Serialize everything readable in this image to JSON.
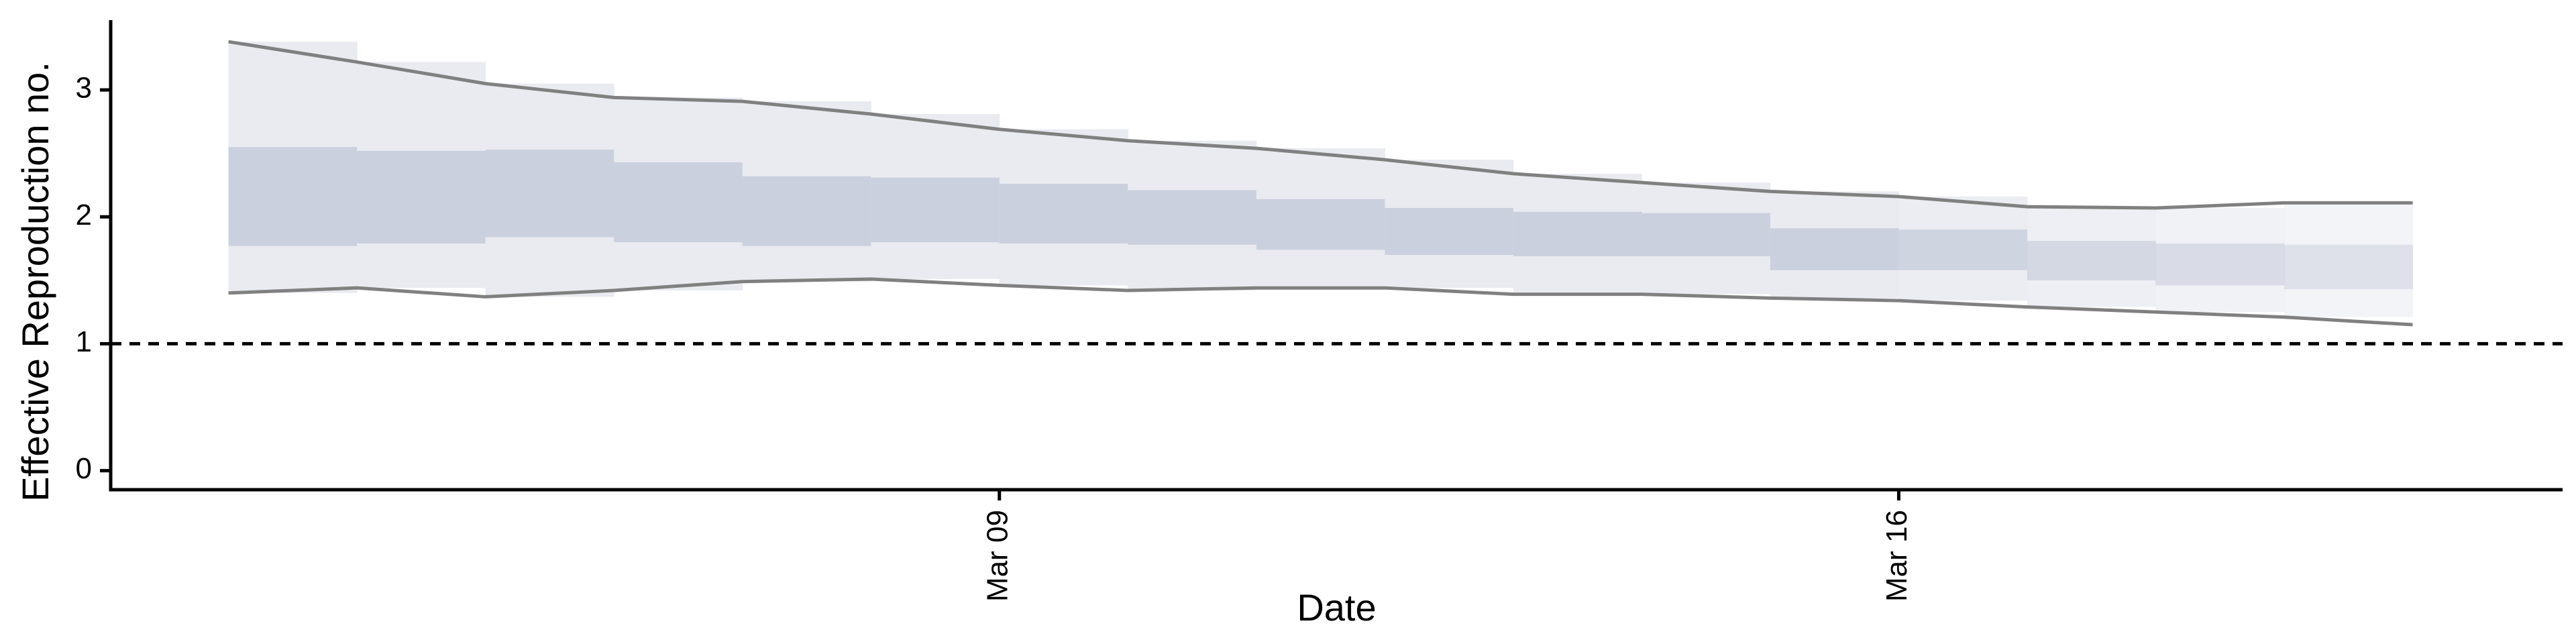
{
  "chart_data": {
    "type": "area",
    "title": "",
    "xlabel": "Date",
    "ylabel": "Effective Reproduction no.",
    "x_ticks": [
      {
        "date": "2020-03-09",
        "label": "Mar 09"
      },
      {
        "date": "2020-03-16",
        "label": "Mar 16"
      }
    ],
    "y_ticks": [
      0,
      1,
      2,
      3
    ],
    "ylim": [
      -0.15,
      3.55
    ],
    "xlim": [
      "2020-03-02T02:00",
      "2020-03-21T04:00"
    ],
    "grid": false,
    "legend": "none",
    "reference_line": {
      "y": 1,
      "style": "dashed",
      "color": "#000000"
    },
    "colors": {
      "outer_band": "#E9EBF1",
      "inner_band": "#C6CBDB",
      "bound_line": "#808080"
    },
    "series": [
      {
        "x": [
          "2020-03-03",
          "2020-03-04",
          "2020-03-05",
          "2020-03-06",
          "2020-03-07",
          "2020-03-08",
          "2020-03-09",
          "2020-03-10",
          "2020-03-11",
          "2020-03-12",
          "2020-03-13",
          "2020-03-14",
          "2020-03-15",
          "2020-03-16",
          "2020-03-17",
          "2020-03-18",
          "2020-03-19",
          "2020-03-20"
        ],
        "lower_90": [
          1.4,
          1.44,
          1.37,
          1.42,
          1.49,
          1.51,
          1.46,
          1.42,
          1.44,
          1.44,
          1.39,
          1.39,
          1.36,
          1.34,
          1.29,
          1.25,
          1.21,
          1.15
        ],
        "upper_90": [
          3.38,
          3.22,
          3.05,
          2.94,
          2.91,
          2.81,
          2.69,
          2.6,
          2.54,
          2.45,
          2.34,
          2.27,
          2.2,
          2.16,
          2.08,
          2.07,
          2.11,
          2.11
        ],
        "lower_50": [
          1.77,
          1.79,
          1.84,
          1.8,
          1.77,
          1.8,
          1.79,
          1.78,
          1.74,
          1.7,
          1.69,
          1.69,
          1.58,
          1.58,
          1.5,
          1.46,
          1.43,
          1.38
        ],
        "upper_50": [
          2.55,
          2.52,
          2.53,
          2.43,
          2.32,
          2.31,
          2.26,
          2.21,
          2.14,
          2.07,
          2.04,
          2.03,
          1.91,
          1.9,
          1.81,
          1.79,
          1.78,
          1.74
        ]
      }
    ]
  }
}
